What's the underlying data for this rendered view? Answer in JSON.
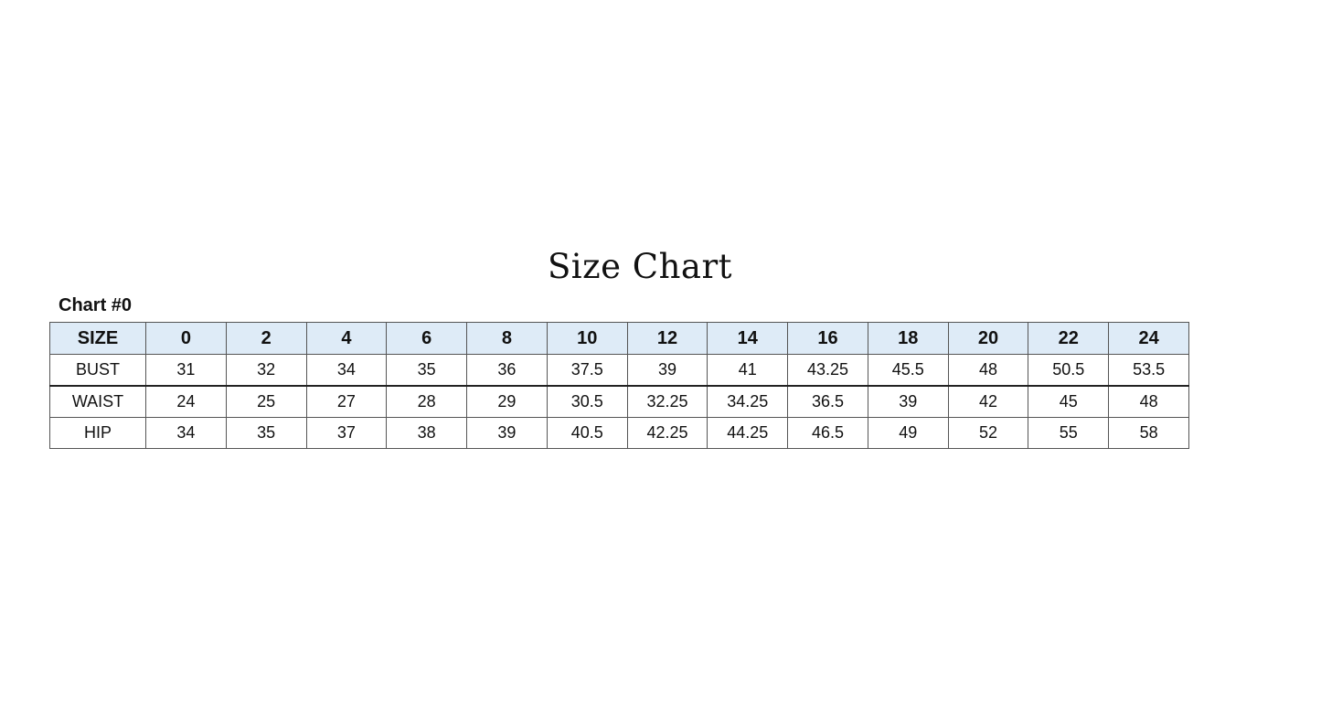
{
  "title": "Size Chart",
  "subtitle": "Chart #0",
  "colors": {
    "header_background": "#deebf7",
    "border": "#555555"
  },
  "table": {
    "header": [
      "SIZE",
      "0",
      "2",
      "4",
      "6",
      "8",
      "10",
      "12",
      "14",
      "16",
      "18",
      "20",
      "22",
      "24"
    ],
    "rows": [
      [
        "BUST",
        "31",
        "32",
        "34",
        "35",
        "36",
        "37.5",
        "39",
        "41",
        "43.25",
        "45.5",
        "48",
        "50.5",
        "53.5"
      ],
      [
        "WAIST",
        "24",
        "25",
        "27",
        "28",
        "29",
        "30.5",
        "32.25",
        "34.25",
        "36.5",
        "39",
        "42",
        "45",
        "48"
      ],
      [
        "HIP",
        "34",
        "35",
        "37",
        "38",
        "39",
        "40.5",
        "42.25",
        "44.25",
        "46.5",
        "49",
        "52",
        "55",
        "58"
      ]
    ]
  }
}
